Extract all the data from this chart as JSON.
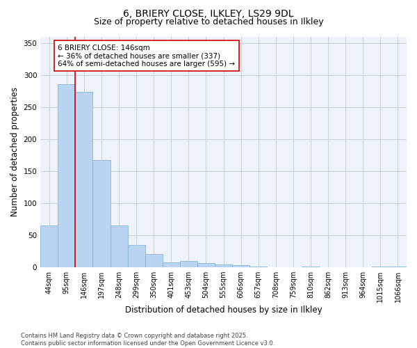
{
  "title_line1": "6, BRIERY CLOSE, ILKLEY, LS29 9DL",
  "title_line2": "Size of property relative to detached houses in Ilkley",
  "categories": [
    "44sqm",
    "95sqm",
    "146sqm",
    "197sqm",
    "248sqm",
    "299sqm",
    "350sqm",
    "401sqm",
    "453sqm",
    "504sqm",
    "555sqm",
    "606sqm",
    "657sqm",
    "708sqm",
    "759sqm",
    "810sqm",
    "862sqm",
    "913sqm",
    "964sqm",
    "1015sqm",
    "1066sqm"
  ],
  "values": [
    65,
    286,
    274,
    167,
    65,
    35,
    20,
    7,
    9,
    6,
    4,
    3,
    1,
    0,
    0,
    1,
    0,
    0,
    0,
    1,
    1
  ],
  "bar_color": "#b8d4f0",
  "bar_edge_color": "#7aaad8",
  "property_line_bar_idx": 2,
  "property_line_color": "#cc0000",
  "annotation_text": "6 BRIERY CLOSE: 146sqm\n← 36% of detached houses are smaller (337)\n64% of semi-detached houses are larger (595) →",
  "annotation_box_color": "#cc0000",
  "ylabel": "Number of detached properties",
  "xlabel": "Distribution of detached houses by size in Ilkley",
  "ylim": [
    0,
    360
  ],
  "yticks": [
    0,
    50,
    100,
    150,
    200,
    250,
    300,
    350
  ],
  "footnote": "Contains HM Land Registry data © Crown copyright and database right 2025.\nContains public sector information licensed under the Open Government Licence v3.0.",
  "bg_color": "#edf2fb",
  "grid_color": "#c8d0e0",
  "title_fontsize": 10,
  "subtitle_fontsize": 9,
  "tick_fontsize": 7,
  "label_fontsize": 8.5,
  "annotation_fontsize": 7.5,
  "footnote_fontsize": 6
}
